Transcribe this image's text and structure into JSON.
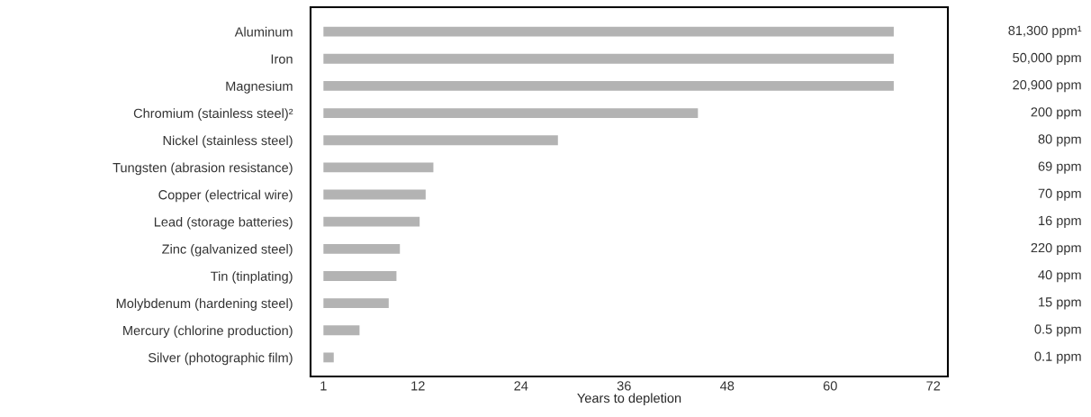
{
  "chart_data": {
    "type": "bar",
    "orientation": "horizontal",
    "xlabel": "Years to depletion",
    "categories": [
      "Aluminum",
      "Iron",
      "Magnesium",
      "Chromium (stainless steel)²",
      "Nickel (stainless steel)",
      "Tungsten (abrasion resistance)",
      "Copper (electrical wire)",
      "Lead (storage batteries)",
      "Zinc (galvanized steel)",
      "Tin (tinplating)",
      "Molybdenum (hardening steel)",
      "Mercury (chlorine production)",
      "Silver (photographic film)"
    ],
    "base": [
      1,
      1,
      1,
      1,
      1,
      1,
      1,
      1,
      1,
      1,
      1,
      1,
      1
    ],
    "values": [
      66.4,
      66.4,
      66.4,
      43.6,
      27.3,
      12.8,
      11.9,
      11.2,
      8.9,
      8.5,
      7.6,
      4.2,
      1.2
    ],
    "color": "#b3b3b3",
    "xlim": [
      -0.5,
      73.7
    ],
    "xticks": [
      1,
      12,
      24,
      36,
      48,
      60,
      72
    ],
    "grid": false,
    "legend": false,
    "annotations": [
      "81,300 ppm¹",
      "50,000 ppm",
      "20,900 ppm",
      "200 ppm",
      "80 ppm",
      "69 ppm",
      "70 ppm",
      "16 ppm",
      "220 ppm",
      "40 ppm",
      "15 ppm",
      "0.5 ppm",
      "0.1 ppm"
    ]
  }
}
